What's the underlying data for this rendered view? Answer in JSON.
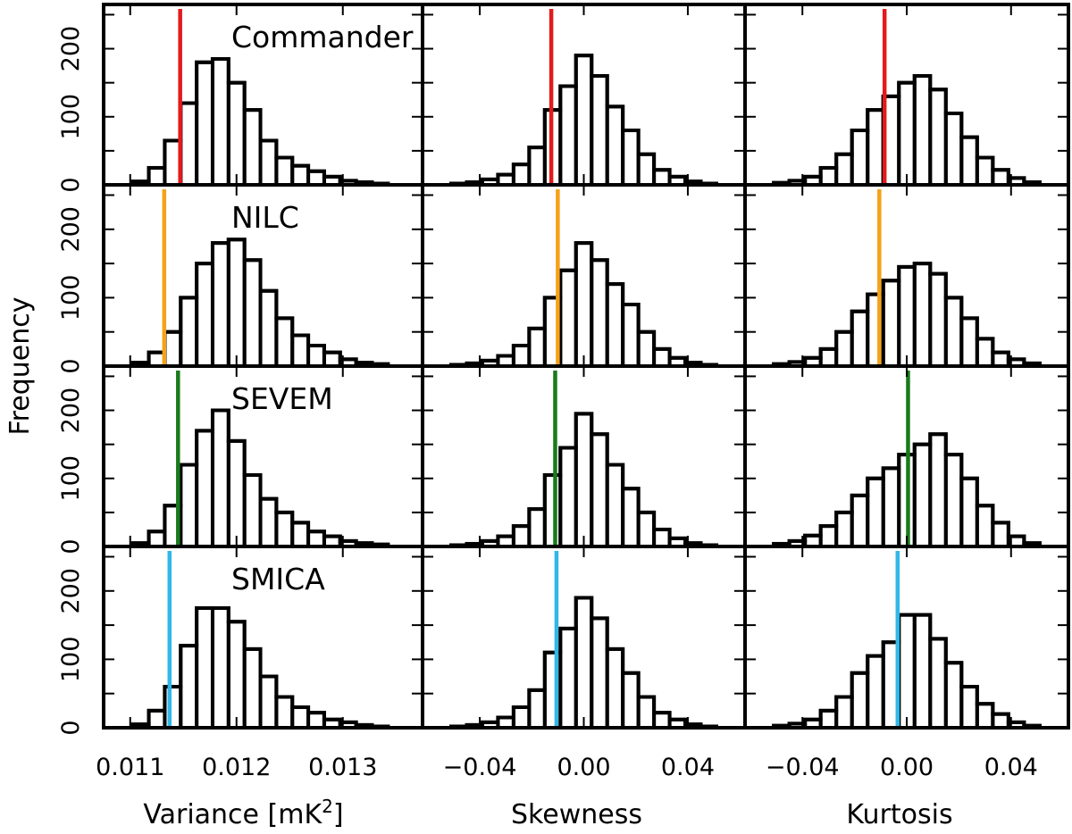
{
  "chart_data": {
    "type": "bar",
    "y_axis_title": "Frequency",
    "y_ticks": [
      0,
      100,
      200
    ],
    "ylim": [
      0,
      265
    ],
    "columns": [
      {
        "key": "variance",
        "xlabel_main": "Variance [mK",
        "xlabel_sup": "2",
        "xlabel_end": "]",
        "xlim": [
          0.01075,
          0.01375
        ],
        "xticks": [
          0.011,
          0.012,
          0.013
        ],
        "xtick_labels": [
          "0.011",
          "0.012",
          "0.013"
        ],
        "bins": [
          0.0111,
          0.01125,
          0.0114,
          0.01155,
          0.0117,
          0.01185,
          0.012,
          0.01215,
          0.0123,
          0.01245,
          0.0126,
          0.01275,
          0.0129,
          0.01305,
          0.0132,
          0.01335
        ]
      },
      {
        "key": "skewness",
        "xlabel_main": "Skewness",
        "xlim": [
          -0.062,
          0.062
        ],
        "xticks": [
          -0.04,
          0.0,
          0.04
        ],
        "xtick_labels": [
          "−0.04",
          "0.00",
          "0.04"
        ],
        "bins": [
          -0.048,
          -0.042,
          -0.036,
          -0.03,
          -0.024,
          -0.018,
          -0.012,
          -0.006,
          0.0,
          0.006,
          0.012,
          0.018,
          0.024,
          0.03,
          0.036,
          0.042,
          0.048
        ]
      },
      {
        "key": "kurtosis",
        "xlabel_main": "Kurtosis",
        "xlim": [
          -0.062,
          0.062
        ],
        "xticks": [
          -0.04,
          0.0,
          0.04
        ],
        "xtick_labels": [
          "−0.04",
          "0.00",
          "0.04"
        ],
        "bins": [
          -0.048,
          -0.042,
          -0.036,
          -0.03,
          -0.024,
          -0.018,
          -0.012,
          -0.006,
          0.0,
          0.006,
          0.012,
          0.018,
          0.024,
          0.03,
          0.036,
          0.042,
          0.048
        ]
      }
    ],
    "rows": [
      {
        "label": "Commander",
        "color": "#e31a1c",
        "panels": [
          {
            "counts": [
              5,
              25,
              65,
              120,
              180,
              185,
              150,
              110,
              65,
              40,
              28,
              20,
              12,
              6,
              4,
              2
            ],
            "observed": 0.01147
          },
          {
            "counts": [
              2,
              4,
              8,
              15,
              30,
              55,
              110,
              145,
              190,
              160,
              115,
              80,
              45,
              22,
              12,
              5,
              2
            ],
            "observed": -0.0125
          },
          {
            "counts": [
              3,
              6,
              12,
              25,
              45,
              80,
              110,
              130,
              150,
              160,
              140,
              105,
              70,
              40,
              22,
              10,
              4
            ],
            "observed": -0.0085
          }
        ]
      },
      {
        "label": "NILC",
        "color": "#f4a21a",
        "panels": [
          {
            "counts": [
              5,
              20,
              50,
              100,
              150,
              180,
              185,
              155,
              110,
              70,
              45,
              30,
              20,
              10,
              5,
              3
            ],
            "observed": 0.01132
          },
          {
            "counts": [
              2,
              4,
              8,
              15,
              30,
              55,
              100,
              140,
              180,
              155,
              120,
              90,
              50,
              25,
              12,
              5,
              2
            ],
            "observed": -0.01
          },
          {
            "counts": [
              3,
              6,
              12,
              25,
              50,
              80,
              105,
              125,
              145,
              150,
              135,
              100,
              70,
              40,
              20,
              10,
              4
            ],
            "observed": -0.0105
          }
        ]
      },
      {
        "label": "SEVEM",
        "color": "#1a7a1a",
        "panels": [
          {
            "counts": [
              5,
              22,
              60,
              120,
              170,
              200,
              155,
              105,
              70,
              50,
              35,
              22,
              15,
              8,
              5,
              3
            ],
            "observed": 0.01145
          },
          {
            "counts": [
              2,
              4,
              8,
              15,
              30,
              55,
              105,
              145,
              195,
              165,
              120,
              85,
              50,
              25,
              12,
              5,
              2
            ],
            "observed": -0.011
          },
          {
            "counts": [
              4,
              8,
              16,
              30,
              50,
              75,
              100,
              115,
              135,
              150,
              165,
              135,
              100,
              60,
              35,
              15,
              5
            ],
            "observed": 0.0005
          }
        ]
      },
      {
        "label": "SMICA",
        "color": "#2fb8e8",
        "panels": [
          {
            "counts": [
              5,
              25,
              60,
              120,
              175,
              175,
              155,
              115,
              75,
              45,
              30,
              22,
              12,
              8,
              4,
              2
            ],
            "observed": 0.01137
          },
          {
            "counts": [
              2,
              4,
              8,
              15,
              30,
              55,
              110,
              145,
              190,
              160,
              115,
              80,
              45,
              22,
              12,
              5,
              2
            ],
            "observed": -0.0105
          },
          {
            "counts": [
              3,
              6,
              12,
              25,
              45,
              80,
              105,
              125,
              165,
              165,
              130,
              95,
              60,
              35,
              20,
              8,
              3
            ],
            "observed": -0.0035
          }
        ]
      }
    ]
  }
}
